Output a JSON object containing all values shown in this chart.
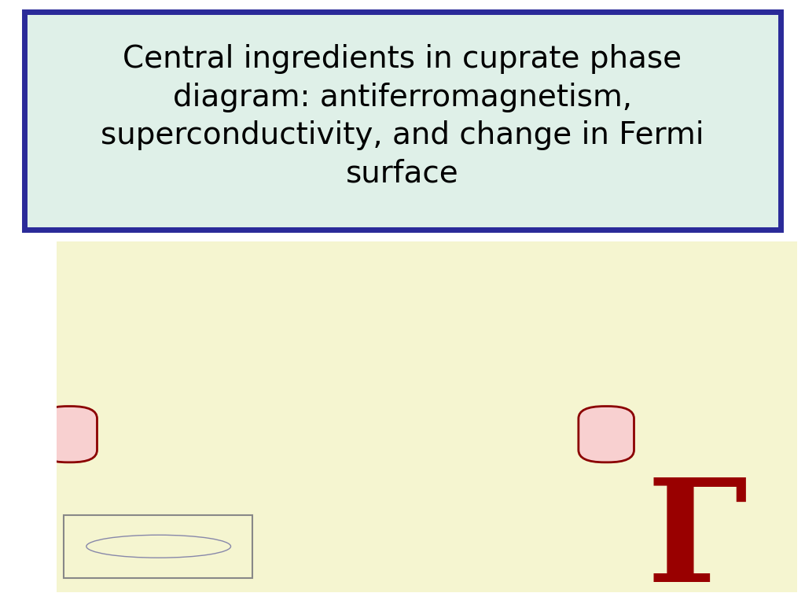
{
  "title_text": "Central ingredients in cuprate phase\ndiagram: antiferromagnetism,\nsuperconductivity, and change in Fermi\nsurface",
  "title_box_bg": "#dff0e8",
  "title_box_border": "#2a2a99",
  "title_fontsize": 28,
  "bg_color": "#ffffff",
  "bottom_bg": "#f5f5d0",
  "rounded_sq_fill": "#f8d0d0",
  "rounded_sq_edge": "#8b0000",
  "ellipse_color": "#8888aa",
  "ellipse_edge": "#888899",
  "gamma_color": "#990000",
  "gamma_fontsize": 130
}
